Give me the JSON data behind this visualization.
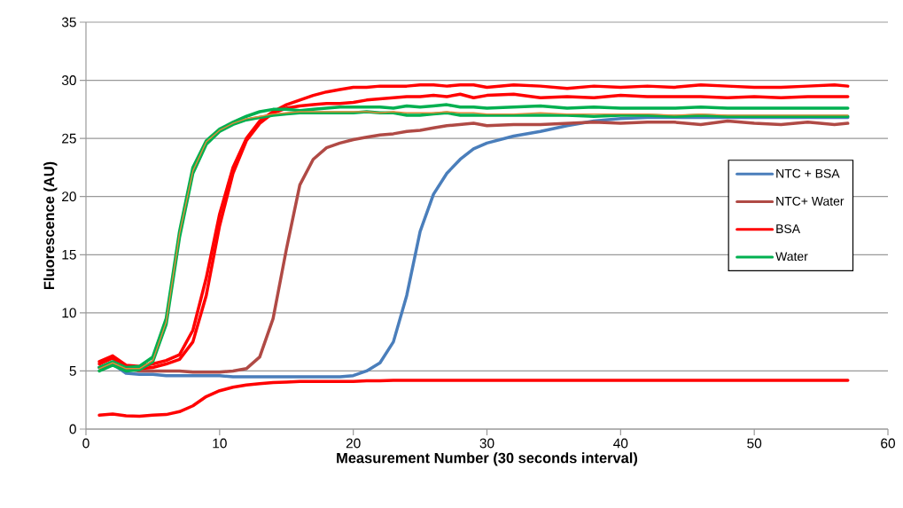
{
  "chart_data": {
    "type": "line",
    "xlabel": "Measurement Number (30 seconds interval)",
    "ylabel": "Fluorescence (AU)",
    "x": [
      1,
      2,
      3,
      4,
      5,
      6,
      7,
      8,
      9,
      10,
      11,
      12,
      13,
      14,
      15,
      16,
      17,
      18,
      19,
      20,
      21,
      22,
      23,
      24,
      25,
      26,
      27,
      28,
      29,
      30,
      32,
      34,
      36,
      38,
      40,
      42,
      44,
      46,
      48,
      50,
      52,
      54,
      56,
      57
    ],
    "series": [
      {
        "name": "NTC + BSA",
        "color": "#4a7ebb",
        "values": [
          5.3,
          5.6,
          4.8,
          4.7,
          4.7,
          4.6,
          4.6,
          4.6,
          4.6,
          4.6,
          4.5,
          4.5,
          4.5,
          4.5,
          4.5,
          4.5,
          4.5,
          4.5,
          4.5,
          4.6,
          5.0,
          5.7,
          7.5,
          11.5,
          17,
          20.2,
          22,
          23.2,
          24.1,
          24.6,
          25.2,
          25.6,
          26.1,
          26.5,
          26.7,
          26.8,
          26.8,
          26.8,
          26.8,
          26.8,
          26.8,
          26.8,
          26.8,
          26.8
        ]
      },
      {
        "name": "NTC+ Water",
        "color": "#b04a45",
        "values": [
          5.3,
          5.7,
          5.2,
          5.0,
          5.0,
          5.0,
          5.0,
          4.9,
          4.9,
          4.9,
          5.0,
          5.2,
          6.2,
          9.5,
          15.5,
          21,
          23.2,
          24.2,
          24.6,
          24.9,
          25.1,
          25.3,
          25.4,
          25.6,
          25.7,
          25.9,
          26.1,
          26.2,
          26.3,
          26.1,
          26.2,
          26.2,
          26.3,
          26.4,
          26.3,
          26.4,
          26.4,
          26.2,
          26.5,
          26.3,
          26.2,
          26.4,
          26.2,
          26.3
        ]
      },
      {
        "name": "BSA",
        "color": "#ff0000",
        "values": [
          5.8,
          6.3,
          5.5,
          5.4,
          5.6,
          5.9,
          6.4,
          8.5,
          13,
          18.5,
          22.5,
          25,
          26.5,
          27.3,
          27.9,
          28.3,
          28.7,
          29.0,
          29.2,
          29.4,
          29.4,
          29.5,
          29.5,
          29.5,
          29.6,
          29.6,
          29.5,
          29.6,
          29.6,
          29.4,
          29.6,
          29.5,
          29.3,
          29.5,
          29.4,
          29.5,
          29.4,
          29.6,
          29.5,
          29.4,
          29.4,
          29.5,
          29.6,
          29.5
        ]
      },
      {
        "color": "#ff0000",
        "values": [
          5.6,
          6.1,
          5.3,
          5.2,
          5.3,
          5.6,
          6.0,
          7.5,
          11.5,
          17.5,
          22,
          24.8,
          26.3,
          27.2,
          27.6,
          27.8,
          27.9,
          28.0,
          28.0,
          28.1,
          28.3,
          28.4,
          28.5,
          28.6,
          28.6,
          28.7,
          28.6,
          28.8,
          28.5,
          28.7,
          28.8,
          28.5,
          28.6,
          28.5,
          28.7,
          28.6,
          28.6,
          28.6,
          28.5,
          28.6,
          28.5,
          28.6,
          28.6,
          28.6
        ]
      },
      {
        "color": "#ff0000",
        "values": [
          1.2,
          1.3,
          1.15,
          1.1,
          1.2,
          1.25,
          1.5,
          2.0,
          2.8,
          3.3,
          3.6,
          3.8,
          3.9,
          4.0,
          4.05,
          4.1,
          4.1,
          4.1,
          4.1,
          4.1,
          4.15,
          4.15,
          4.2,
          4.2,
          4.2,
          4.2,
          4.2,
          4.2,
          4.2,
          4.2,
          4.2,
          4.2,
          4.2,
          4.2,
          4.2,
          4.2,
          4.2,
          4.2,
          4.2,
          4.2,
          4.2,
          4.2,
          4.2,
          4.2
        ]
      },
      {
        "name": "Water",
        "color": "#00b050",
        "values": [
          5.3,
          5.8,
          5.3,
          5.4,
          6.2,
          9.5,
          17,
          22.5,
          24.8,
          25.8,
          26.4,
          26.9,
          27.3,
          27.5,
          27.5,
          27.4,
          27.5,
          27.6,
          27.7,
          27.7,
          27.7,
          27.7,
          27.6,
          27.8,
          27.7,
          27.8,
          27.9,
          27.7,
          27.7,
          27.6,
          27.7,
          27.8,
          27.6,
          27.7,
          27.6,
          27.6,
          27.6,
          27.7,
          27.6,
          27.6,
          27.6,
          27.6,
          27.6,
          27.6
        ]
      },
      {
        "color": "#00b050",
        "values": [
          5.0,
          5.5,
          5.0,
          5.1,
          5.8,
          9,
          16.5,
          22,
          24.5,
          25.6,
          26.2,
          26.6,
          26.8,
          27.0,
          27.1,
          27.2,
          27.2,
          27.2,
          27.2,
          27.2,
          27.3,
          27.2,
          27.2,
          27.0,
          27.0,
          27.1,
          27.2,
          27.0,
          27.0,
          27.0,
          27.0,
          27.0,
          27.0,
          26.9,
          27.0,
          27.0,
          26.9,
          27.0,
          26.9,
          26.9,
          26.9,
          26.9,
          26.9,
          26.9
        ]
      },
      {
        "color": "#e5893a",
        "values": [
          5.2,
          5.7,
          5.2,
          5.2,
          5.9,
          9.2,
          16.8,
          22.2,
          24.7,
          25.7,
          26.3,
          26.7,
          26.9,
          27.1,
          27.2,
          27.3,
          27.3,
          27.3,
          27.3,
          27.3,
          27.3,
          27.2,
          27.3,
          27.2,
          27.2,
          27.2,
          27.3,
          27.2,
          27.2,
          27.1,
          27.1,
          27.2,
          27.1,
          27.1,
          27.1,
          27.1,
          27.0,
          27.1,
          27.0,
          27.0,
          27.0,
          27.0,
          27.0,
          27.0
        ]
      }
    ],
    "xlim": [
      0,
      60
    ],
    "xticks": [
      0,
      10,
      20,
      30,
      40,
      50,
      60
    ],
    "ylim": [
      0,
      35
    ],
    "yticks": [
      0,
      5,
      10,
      15,
      20,
      25,
      30,
      35
    ],
    "grid": "y",
    "legend": "right"
  }
}
